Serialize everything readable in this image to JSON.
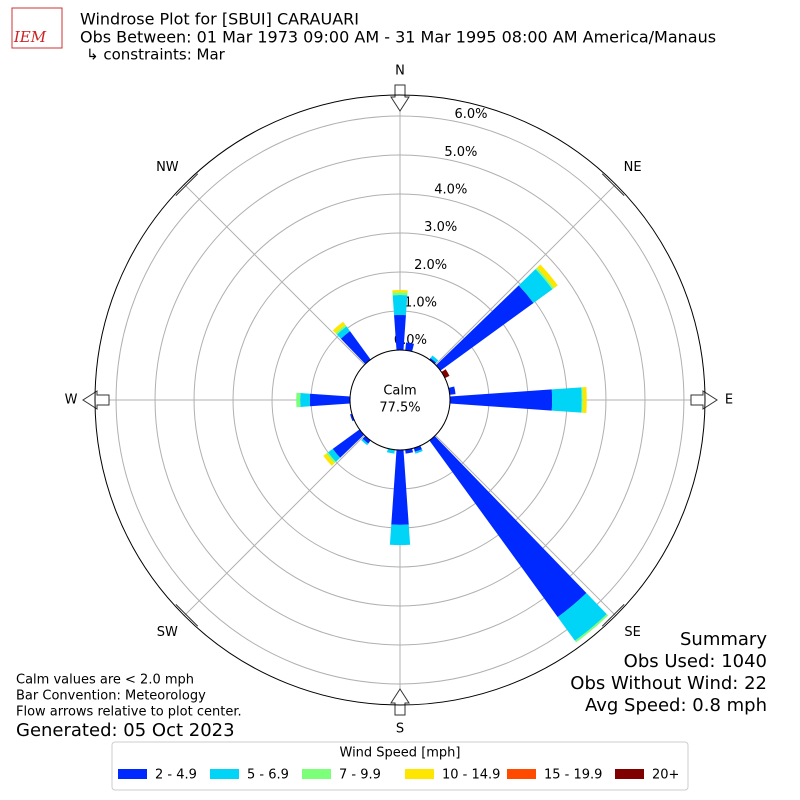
{
  "header": {
    "logo_text": "IEM",
    "title": "Windrose Plot for [SBUI] CARAUARI",
    "subtitle": "Obs Between: 01 Mar 1973 09:00 AM - 31 Mar 1995 08:00 AM America/Manaus",
    "constraints": "↳ constraints: Mar"
  },
  "chart_data": {
    "type": "windrose",
    "direction_labels": [
      "N",
      "NE",
      "E",
      "SE",
      "S",
      "SW",
      "W",
      "NW"
    ],
    "calm_label": "Calm",
    "calm_value": 77.5,
    "calm_value_label": "77.5%",
    "rlim": [
      0,
      6.54
    ],
    "rticks": [
      {
        "value": 0,
        "label": "0.0%"
      },
      {
        "value": 1,
        "label": "1.0%"
      },
      {
        "value": 2,
        "label": "2.0%"
      },
      {
        "value": 3,
        "label": "3.0%"
      },
      {
        "value": 4,
        "label": "4.0%"
      },
      {
        "value": 5,
        "label": "5.0%"
      },
      {
        "value": 6,
        "label": "6.0%"
      }
    ],
    "grid": true,
    "legend_title": "Wind Speed [mph]",
    "series": [
      {
        "name": "2 - 4.9",
        "color": "#0029ff",
        "values": [
          0.9,
          0.2,
          0,
          0,
          0.05,
          2.95,
          0,
          0,
          0.15,
          2.62,
          0,
          0,
          0,
          0,
          5.6,
          0,
          0.1,
          0.1,
          1.92,
          0,
          0,
          0,
          0.1,
          0.85,
          0,
          0.05,
          0,
          1.03,
          0,
          0,
          0,
          0,
          0.9,
          0,
          0,
          0
        ]
      },
      {
        "name": "5 - 6.9",
        "color": "#00d5f7",
        "values": [
          0.51,
          0,
          0,
          0,
          0.08,
          0.6,
          0,
          0,
          0,
          0.76,
          0,
          0,
          0,
          0,
          0.75,
          0,
          0.05,
          0,
          0.52,
          0.1,
          0,
          0,
          0.05,
          0.15,
          0,
          0,
          0,
          0.25,
          0,
          0,
          0,
          0,
          0.15,
          0,
          0,
          0
        ]
      },
      {
        "name": "7 - 9.9",
        "color": "#7cff79",
        "values": [
          0.07,
          0,
          0,
          0,
          0,
          0.05,
          0,
          0,
          0,
          0.03,
          0,
          0,
          0,
          0,
          0.05,
          0,
          0,
          0,
          0,
          0,
          0,
          0,
          0,
          0.05,
          0,
          0,
          0,
          0.1,
          0,
          0,
          0,
          0,
          0.05,
          0,
          0,
          0
        ]
      },
      {
        "name": "10 - 14.9",
        "color": "#ffe600",
        "values": [
          0.06,
          0,
          0,
          0,
          0,
          0.12,
          0,
          0,
          0,
          0.1,
          0,
          0,
          0,
          0,
          0,
          0,
          0,
          0,
          0,
          0,
          0,
          0,
          0,
          0.1,
          0,
          0,
          0,
          0,
          0,
          0,
          0,
          0,
          0.1,
          0,
          0,
          0
        ]
      },
      {
        "name": "15 - 19.9",
        "color": "#ff4a00",
        "values": [
          0,
          0,
          0,
          0,
          0,
          0,
          0,
          0,
          0,
          0,
          0,
          0,
          0,
          0,
          0,
          0,
          0,
          0,
          0,
          0,
          0,
          0,
          0,
          0,
          0,
          0,
          0,
          0,
          0,
          0,
          0,
          0,
          0,
          0,
          0,
          0
        ]
      },
      {
        "name": "20+",
        "color": "#800000",
        "values": [
          0,
          0,
          0,
          0,
          0,
          0,
          0.13,
          0,
          0,
          0,
          0,
          0,
          0,
          0,
          0,
          0,
          0,
          0,
          0,
          0,
          0,
          0,
          0,
          0,
          0,
          0,
          0,
          0,
          0,
          0,
          0,
          0,
          0,
          0,
          0,
          0
        ]
      }
    ]
  },
  "summary": {
    "title": "Summary",
    "lines": [
      "Obs Used: 1040",
      "Obs Without Wind: 22",
      "Avg Speed: 0.8 mph"
    ]
  },
  "notes": [
    "Calm values are < 2.0 mph",
    "Bar Convention: Meteorology",
    "Flow arrows relative to plot center."
  ],
  "generated": "Generated: 05 Oct 2023"
}
